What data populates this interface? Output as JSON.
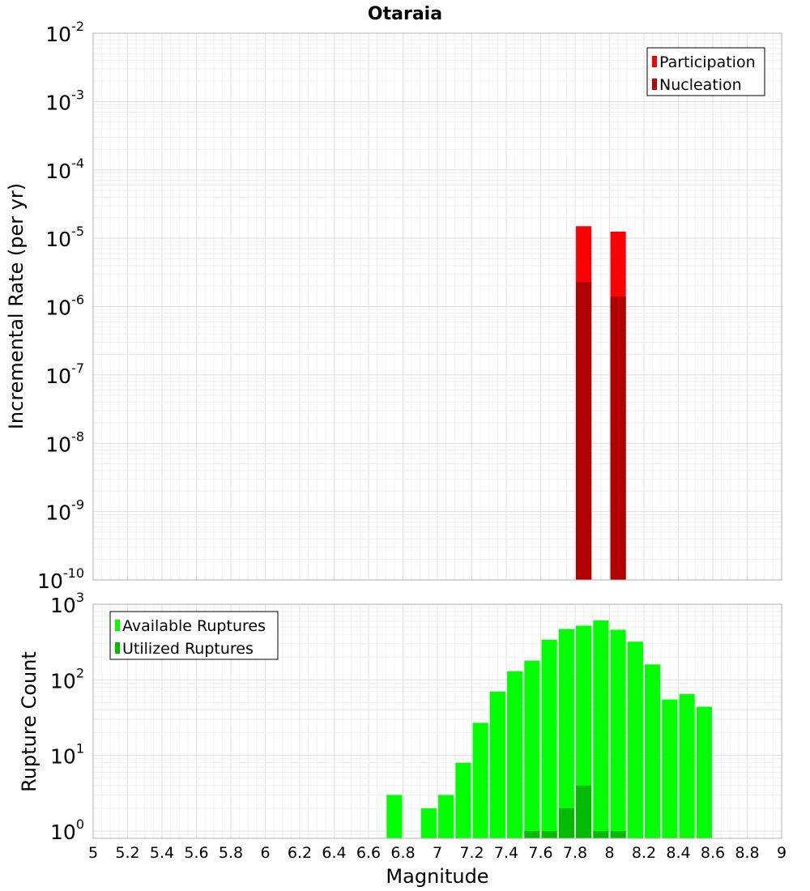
{
  "chart_data": [
    {
      "type": "bar",
      "title": "Otaraia",
      "ylabel": "Incremental Rate (per yr)",
      "xlabel": "",
      "xlim": [
        5,
        9
      ],
      "ylim": [
        1e-10,
        0.01
      ],
      "yscale": "log",
      "ytick_exponents": [
        -10,
        -9,
        -8,
        -7,
        -6,
        -5,
        -4,
        -3,
        -2
      ],
      "grid": true,
      "legend": "top-right",
      "bar_width": 0.09,
      "series": [
        {
          "name": "Participation",
          "color": "#ff0000",
          "x": [
            7.85,
            8.05
          ],
          "values": [
            1.5e-05,
            1.25e-05
          ]
        },
        {
          "name": "Nucleation",
          "color": "#b00000",
          "x": [
            7.85,
            8.05
          ],
          "values": [
            2.3e-06,
            1.4e-06
          ]
        }
      ]
    },
    {
      "type": "bar",
      "title": "",
      "ylabel": "Rupture Count",
      "xlabel": "Magnitude",
      "xlim": [
        5,
        9
      ],
      "ylim": [
        0.8,
        1000
      ],
      "yscale": "log",
      "ytick_exponents": [
        0,
        1,
        2,
        3
      ],
      "xticks": [
        "5",
        "5.2",
        "5.4",
        "5.6",
        "5.8",
        "6",
        "6.2",
        "6.4",
        "6.6",
        "6.8",
        "7",
        "7.2",
        "7.4",
        "7.6",
        "7.8",
        "8",
        "8.2",
        "8.4",
        "8.6",
        "8.8",
        "9"
      ],
      "grid": true,
      "legend": "top-left",
      "bar_width": 0.09,
      "series": [
        {
          "name": "Available Ruptures",
          "color": "#00ff00",
          "x": [
            6.75,
            6.95,
            7.05,
            7.15,
            7.25,
            7.35,
            7.45,
            7.55,
            7.65,
            7.75,
            7.85,
            7.95,
            8.05,
            8.15,
            8.25,
            8.35,
            8.45,
            8.55
          ],
          "values": [
            3,
            2,
            3,
            8,
            27,
            70,
            130,
            180,
            340,
            470,
            520,
            610,
            460,
            320,
            160,
            55,
            65,
            44
          ]
        },
        {
          "name": "Utilized Ruptures",
          "color": "#00bb00",
          "x": [
            7.55,
            7.65,
            7.75,
            7.85,
            7.95,
            8.05
          ],
          "values": [
            1,
            1,
            2,
            4,
            1,
            1
          ]
        }
      ]
    }
  ]
}
